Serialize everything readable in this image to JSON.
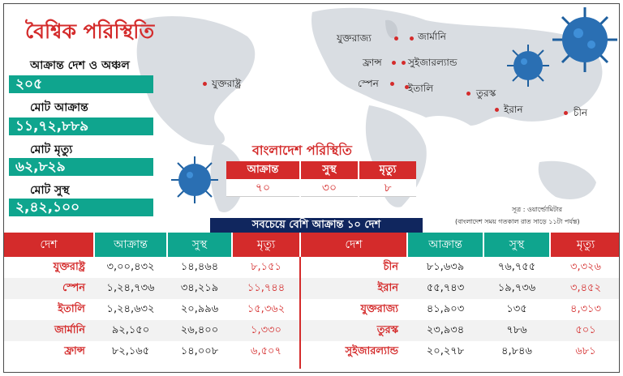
{
  "global": {
    "title": "বৈশ্বিক পরিস্থিতি",
    "stats": [
      {
        "label": "আক্রান্ত দেশ ও অঞ্চল",
        "value": "২০৫"
      },
      {
        "label": "মোট আক্রান্ত",
        "value": "১১,৭২,৮৮৯"
      },
      {
        "label": "মোট মৃত্যু",
        "value": "৬২,৮২৯"
      },
      {
        "label": "মোট সুস্থ",
        "value": "২,৪২,১০০"
      }
    ]
  },
  "map_labels": [
    "যুক্তরাজ্য",
    "জার্মানি",
    "ফ্রান্স",
    "সুইজারল্যান্ড",
    "স্পেন",
    "ইতালি",
    "তুরস্ক",
    "ইরান",
    "চীন",
    "যুক্তরাষ্ট্র"
  ],
  "bangladesh": {
    "title": "বাংলাদেশ পরিস্থিতি",
    "headers": [
      "আক্রান্ত",
      "সুস্থ",
      "মৃত্যু"
    ],
    "values": [
      "৭০",
      "৩০",
      "৮"
    ]
  },
  "source": {
    "line1": "সূত্র : ওয়ার্ল্ডোমিটার",
    "line2": "(বাংলাদেশ সময় গতকাল রাত সাড়ে ১১টা পর্যন্ত)"
  },
  "top10": {
    "title": "সবচেয়ে বেশি আক্রান্ত ১০ দেশ",
    "headers": [
      "দেশ",
      "আক্রান্ত",
      "সুস্থ",
      "মৃত্যু"
    ],
    "left": [
      {
        "country": "যুক্তরাষ্ট্র",
        "infected": "৩,০০,৪৩২",
        "recovered": "১৪,৪৬৪",
        "deaths": "৮,১৫১"
      },
      {
        "country": "স্পেন",
        "infected": "১,২৪,৭৩৬",
        "recovered": "৩৪,২১৯",
        "deaths": "১১,৭৪৪"
      },
      {
        "country": "ইতালি",
        "infected": "১,২৪,৬৩২",
        "recovered": "২০,৯৯৬",
        "deaths": "১৫,৩৬২"
      },
      {
        "country": "জার্মানি",
        "infected": "৯২,১৫০",
        "recovered": "২৬,৪০০",
        "deaths": "১,৩৩০"
      },
      {
        "country": "ফ্রান্স",
        "infected": "৮২,১৬৫",
        "recovered": "১৪,০০৮",
        "deaths": "৬,৫০৭"
      }
    ],
    "right": [
      {
        "country": "চীন",
        "infected": "৮১,৬৩৯",
        "recovered": "৭৬,৭৫৫",
        "deaths": "৩,৩২৬"
      },
      {
        "country": "ইরান",
        "infected": "৫৫,৭৪৩",
        "recovered": "১৯,৭৩৬",
        "deaths": "৩,৪৫২"
      },
      {
        "country": "যুক্তরাজ্য",
        "infected": "৪১,৯০৩",
        "recovered": "১৩৫",
        "deaths": "৪,৩১৩"
      },
      {
        "country": "তুরস্ক",
        "infected": "২৩,৯৩৪",
        "recovered": "৭৮৬",
        "deaths": "৫০১"
      },
      {
        "country": "সুইজারল্যান্ড",
        "infected": "২০,২৭৮",
        "recovered": "৪,৮৪৬",
        "deaths": "৬৮১"
      }
    ]
  },
  "colors": {
    "red": "#d42b2b",
    "teal": "#0fa58e",
    "navy": "#10265e",
    "map": "#d9dde2"
  }
}
